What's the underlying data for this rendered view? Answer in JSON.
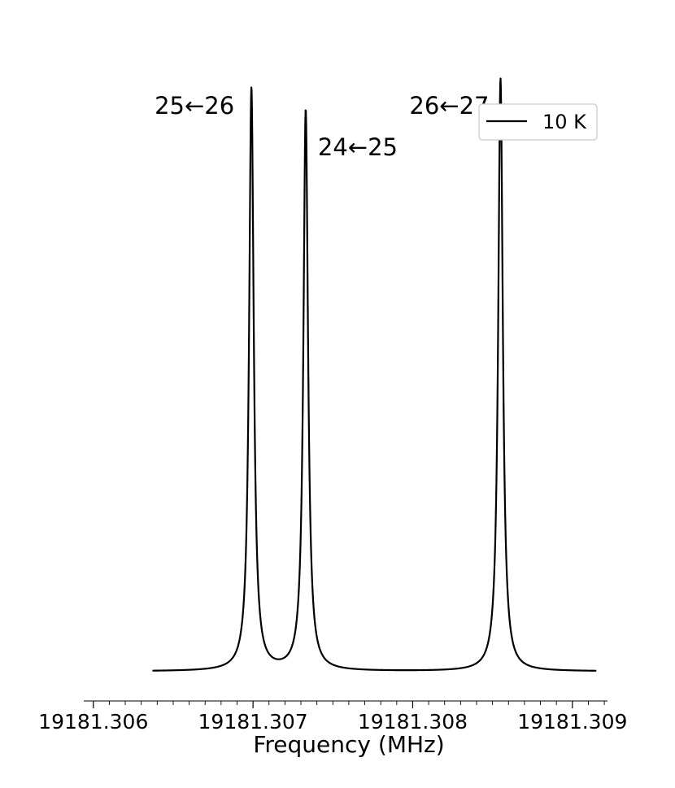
{
  "chart_data": {
    "type": "line",
    "xlabel": "Frequency (MHz)",
    "ylabel": "",
    "xlim": [
      19181.30594,
      19181.30922
    ],
    "ylim": [
      -0.05,
      1.05
    ],
    "x_ticks": [
      {
        "value": 19181.306,
        "label": "19181.306"
      },
      {
        "value": 19181.307,
        "label": "19181.307"
      },
      {
        "value": 19181.308,
        "label": "19181.308"
      },
      {
        "value": 19181.309,
        "label": "19181.309"
      }
    ],
    "x_minor_tick_step": 0.0001,
    "x_range_data": [
      19181.30637,
      19181.30915
    ],
    "lorentz_gamma": 1.75e-05,
    "legend": {
      "label": "10 K",
      "placement": "top-right"
    },
    "series": [
      {
        "name": "10 K",
        "color": "#000000",
        "peaks": [
          {
            "center": 19181.30699,
            "height": 0.983,
            "label": "25←26"
          },
          {
            "center": 19181.30733,
            "height": 0.946,
            "label": "24←25"
          },
          {
            "center": 19181.30855,
            "height": 1.0,
            "label": "26←27"
          }
        ]
      }
    ],
    "annotations": [
      "25←26",
      "24←25",
      "26←27"
    ]
  }
}
